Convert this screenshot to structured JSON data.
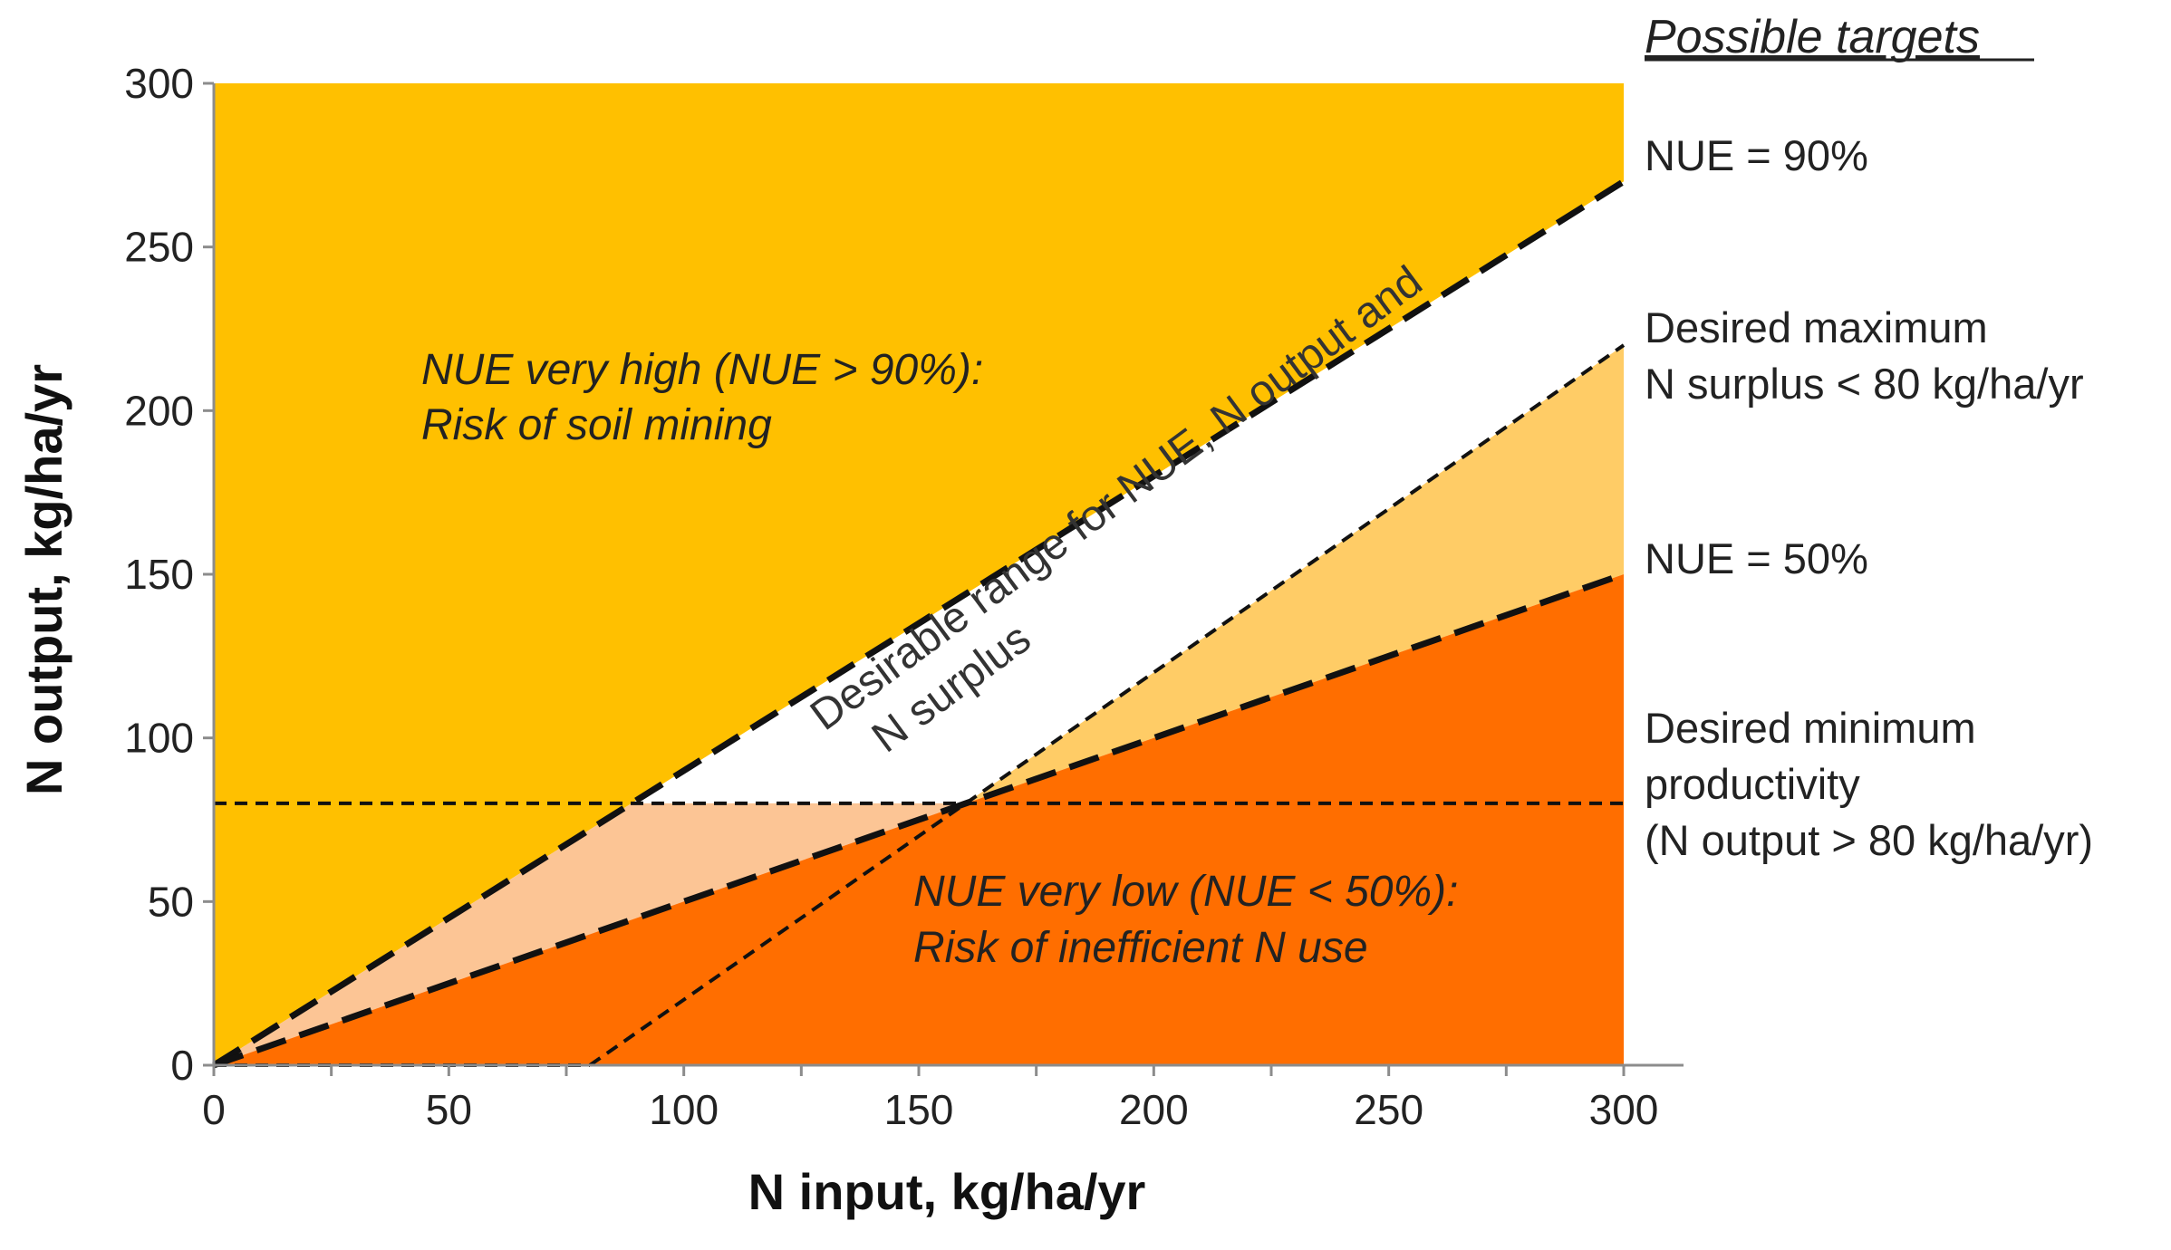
{
  "chart_data": {
    "type": "area",
    "title": "",
    "xlabel": "N input, kg/ha/yr",
    "ylabel": "N output, kg/ha/yr",
    "xlim": [
      0,
      300
    ],
    "ylim": [
      0,
      300
    ],
    "xticks": [
      0,
      50,
      100,
      150,
      200,
      250,
      300
    ],
    "yticks": [
      0,
      50,
      100,
      150,
      200,
      250,
      300
    ],
    "lines": [
      {
        "name": "NUE = 90%",
        "style": "long-dash",
        "x": [
          0,
          300
        ],
        "y": [
          0,
          270
        ]
      },
      {
        "name": "Desired maximum N surplus < 80 kg/ha/yr",
        "style": "short-dash",
        "x": [
          80,
          300
        ],
        "y": [
          0,
          220
        ]
      },
      {
        "name": "NUE = 50%",
        "style": "long-dash",
        "x": [
          0,
          300
        ],
        "y": [
          0,
          150
        ]
      },
      {
        "name": "Desired minimum productivity (N output > 80 kg/ha/yr)",
        "style": "short-dash",
        "x": [
          0,
          300
        ],
        "y": [
          80,
          80
        ]
      },
      {
        "name": "zero surplus baseline",
        "style": "short-dash",
        "x": [
          0,
          80
        ],
        "y": [
          0,
          0
        ]
      }
    ],
    "regions": [
      {
        "name": "NUE very high (NUE > 90%)",
        "color": "#FFC000",
        "points": [
          [
            0,
            0
          ],
          [
            0,
            300
          ],
          [
            300,
            300
          ],
          [
            300,
            270
          ]
        ]
      },
      {
        "name": "Desirable range",
        "color": "#FFFFFF",
        "points": [
          [
            88.9,
            80
          ],
          [
            300,
            270
          ],
          [
            300,
            220
          ],
          [
            160,
            80
          ]
        ]
      },
      {
        "name": "Surplus exceeded, NUE 50-90%",
        "color": "#FFCC66",
        "points": [
          [
            160,
            80
          ],
          [
            300,
            220
          ],
          [
            300,
            150
          ]
        ]
      },
      {
        "name": "Low output, NUE 50-90%",
        "color": "#FCC595",
        "points": [
          [
            0,
            0
          ],
          [
            88.9,
            80
          ],
          [
            160,
            80
          ]
        ]
      },
      {
        "name": "NUE very low (NUE < 50%)",
        "color": "#FF6E00",
        "points": [
          [
            0,
            0
          ],
          [
            300,
            150
          ],
          [
            300,
            0
          ]
        ]
      }
    ]
  },
  "annotations": {
    "high_line1": "NUE very high (NUE > 90%):",
    "high_line2": "Risk of soil mining",
    "low_line1": "NUE very low (NUE < 50%):",
    "low_line2": "Risk of inefficient N use",
    "band_line1": "Desirable range for NUE, N output and",
    "band_line2": "N surplus"
  },
  "targets": {
    "title": "Possible targets",
    "nue90": "NUE  = 90%",
    "maxsurplus_line1": "Desired maximum",
    "maxsurplus_line2": "N surplus  < 80 kg/ha/yr",
    "nue50": "NUE  = 50%",
    "minprod_line1": "Desired minimum",
    "minprod_line2": "productivity",
    "minprod_line3": "(N output > 80 kg/ha/yr)"
  },
  "colors": {
    "veryhigh": "#FFC000",
    "surplus": "#FFCC66",
    "lowout": "#FCC595",
    "verylow": "#FF6E00",
    "desirable": "#FFFFFF"
  }
}
